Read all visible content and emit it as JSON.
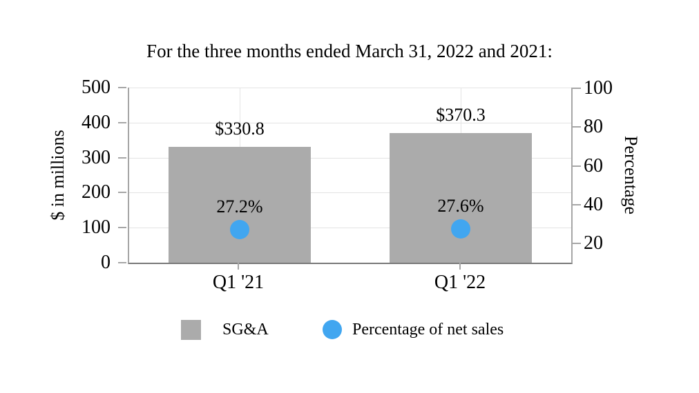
{
  "chart_data": {
    "type": "bar",
    "title": "For the three months ended March 31, 2022 and 2021:",
    "categories": [
      "Q1 '21",
      "Q1 '22"
    ],
    "series": [
      {
        "name": "SG&A",
        "type": "bar",
        "axis": "left",
        "values": [
          330.8,
          370.3
        ],
        "labels": [
          "$330.8",
          "$370.3"
        ],
        "color": "#ababab"
      },
      {
        "name": "Percentage of net sales",
        "type": "scatter",
        "axis": "right",
        "values": [
          27.2,
          27.6
        ],
        "labels": [
          "27.2%",
          "27.6%"
        ],
        "color": "#41a6f0"
      }
    ],
    "left_axis": {
      "label": "$ in millions",
      "ticks": [
        "500",
        "400",
        "300",
        "200",
        "100",
        "0"
      ],
      "range": [
        0,
        500
      ]
    },
    "right_axis": {
      "label": "Percentage",
      "ticks": [
        "100",
        "80",
        "60",
        "40",
        "20"
      ],
      "top_value": 100
    },
    "grid": true,
    "legend_position": "bottom",
    "legend": [
      "SG&A",
      "Percentage of net sales"
    ]
  }
}
